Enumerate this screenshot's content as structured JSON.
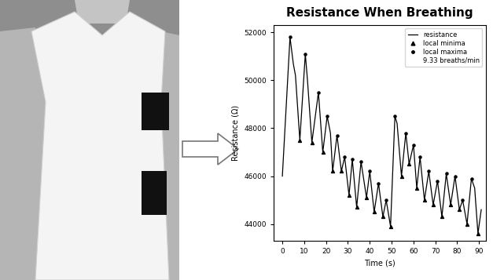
{
  "chart_data": {
    "type": "line",
    "title": "Resistance When Breathing",
    "x_label": "Time (s)",
    "y_label": "Resistance (Ω)",
    "series": [
      {
        "name": "resistance",
        "type": "line",
        "color": "#000000",
        "line_style": "solid",
        "x": [
          0,
          3.5,
          5,
          6,
          8,
          10.5,
          11.5,
          13.5,
          16.5,
          18.5,
          20.5,
          22,
          23,
          25,
          27,
          28.5,
          30.5,
          32,
          34,
          36,
          38.5,
          40,
          42,
          44,
          46,
          47.5,
          49.5,
          51.5,
          52.5,
          54.5,
          56.5,
          58,
          60,
          61.5,
          63,
          65,
          67,
          69,
          71,
          73,
          75,
          77,
          79,
          81,
          82.5,
          84.5,
          86.5,
          88,
          89.5,
          91
        ],
        "values": [
          46000,
          51800,
          50700,
          50200,
          47500,
          51100,
          50000,
          47400,
          49500,
          47000,
          48500,
          47800,
          46200,
          47700,
          46200,
          46800,
          45200,
          46700,
          44700,
          46600,
          45100,
          46200,
          44500,
          45700,
          44300,
          45000,
          43900,
          48500,
          48200,
          46000,
          47800,
          46500,
          47300,
          45500,
          46800,
          45000,
          46200,
          44800,
          45800,
          44300,
          46100,
          44800,
          46000,
          44600,
          45000,
          44000,
          45900,
          45500,
          43600,
          44600
        ]
      },
      {
        "name": "local minima",
        "type": "scatter",
        "color": "#000000",
        "marker": "triangle",
        "x": [
          8,
          13.5,
          18.5,
          23,
          27,
          30.5,
          34,
          38.5,
          42,
          46,
          49.5,
          54.5,
          58,
          61.5,
          65,
          69,
          73,
          77,
          81,
          84.5,
          89.5
        ],
        "values": [
          47500,
          47400,
          47000,
          46200,
          46200,
          45200,
          44700,
          45100,
          44500,
          44300,
          43900,
          46000,
          46500,
          45500,
          45000,
          44800,
          44300,
          44800,
          44600,
          44000,
          43600
        ]
      },
      {
        "name": "local maxima",
        "type": "scatter",
        "color": "#000000",
        "marker": "circle",
        "x": [
          3.5,
          10.5,
          16.5,
          20.5,
          25,
          28.5,
          32,
          36,
          40,
          44,
          47.5,
          51.5,
          56.5,
          60,
          63,
          67,
          71,
          75,
          79,
          82.5,
          86.5
        ],
        "values": [
          51800,
          51100,
          49500,
          48500,
          47700,
          46800,
          46700,
          46600,
          46200,
          45700,
          45000,
          48500,
          47800,
          47300,
          46800,
          46200,
          45800,
          46100,
          46000,
          45000,
          45900
        ]
      }
    ],
    "annotations": [
      "9.33 breaths/min"
    ],
    "xlim": [
      -4,
      93
    ],
    "xticks": [
      0,
      10,
      20,
      30,
      40,
      50,
      60,
      70,
      80,
      90
    ],
    "ylim": [
      43300,
      52300
    ],
    "yticks": [
      44000,
      46000,
      48000,
      50000,
      52000
    ],
    "grid": false,
    "legend": "upper right"
  }
}
